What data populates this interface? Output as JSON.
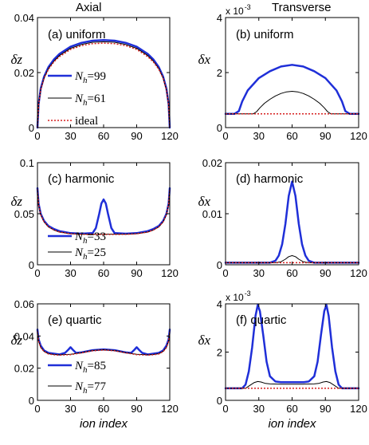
{
  "column_titles": {
    "left": "Axial",
    "right": "Transverse"
  },
  "colors": {
    "blue": "#1f2fd8",
    "black": "#000000",
    "red": "#d62020"
  },
  "chart_data": [
    {
      "id": "a",
      "type": "line",
      "title": "(a) uniform",
      "ylabel": "δz",
      "xlabel": "",
      "xlim": [
        0,
        120
      ],
      "ylim": [
        0,
        0.04
      ],
      "xticks": [
        "0",
        "30",
        "60",
        "90",
        "120"
      ],
      "yticks": [
        "0",
        "0.02",
        "0.04"
      ],
      "x": [
        0,
        1,
        3,
        6,
        10,
        15,
        20,
        30,
        40,
        50,
        60,
        70,
        80,
        90,
        100,
        105,
        110,
        114,
        117,
        119,
        120
      ],
      "legend": {
        "placement": "lower-center"
      },
      "series": [
        {
          "name": "N_h=99",
          "name_base": "N",
          "name_sub": "h",
          "name_rest": "=99",
          "color": "#1f2fd8",
          "style": "solid",
          "width": 2.5,
          "values": [
            0.0,
            0.0085,
            0.0142,
            0.0185,
            0.022,
            0.0248,
            0.0268,
            0.0294,
            0.0308,
            0.0316,
            0.0318,
            0.0316,
            0.0308,
            0.0294,
            0.0268,
            0.0248,
            0.022,
            0.0185,
            0.0142,
            0.0085,
            0.0
          ]
        },
        {
          "name": "N_h=61",
          "name_base": "N",
          "name_sub": "h",
          "name_rest": "=61",
          "color": "#000000",
          "style": "solid",
          "width": 1,
          "values": [
            0.0,
            0.0083,
            0.0139,
            0.0181,
            0.0215,
            0.0242,
            0.0262,
            0.0288,
            0.0302,
            0.031,
            0.0312,
            0.031,
            0.0302,
            0.0288,
            0.0262,
            0.0242,
            0.0215,
            0.0181,
            0.0139,
            0.0083,
            0.0
          ]
        },
        {
          "name": "ideal",
          "color": "#d62020",
          "style": "dotted",
          "width": 1.5,
          "values": [
            0.0,
            0.0082,
            0.0137,
            0.0179,
            0.0212,
            0.0239,
            0.0258,
            0.0284,
            0.0298,
            0.0305,
            0.0307,
            0.0305,
            0.0298,
            0.0284,
            0.0258,
            0.0239,
            0.0212,
            0.0179,
            0.0137,
            0.0082,
            0.0
          ]
        }
      ]
    },
    {
      "id": "b",
      "type": "line",
      "title": "(b) uniform",
      "ylabel": "δx",
      "xlabel": "",
      "multiplier_base": "x 10",
      "multiplier_exp": "-3",
      "xlim": [
        0,
        120
      ],
      "ylim": [
        0,
        4
      ],
      "xticks": [
        "0",
        "30",
        "60",
        "90",
        "120"
      ],
      "yticks": [
        "0",
        "2",
        "4"
      ],
      "series": [
        {
          "color": "#1f2fd8",
          "style": "solid",
          "width": 2.5,
          "x": [
            0,
            8,
            12,
            15,
            20,
            30,
            40,
            50,
            60,
            70,
            80,
            90,
            100,
            105,
            108,
            112,
            120
          ],
          "values": [
            0.5,
            0.5,
            0.6,
            0.95,
            1.35,
            1.8,
            2.05,
            2.22,
            2.28,
            2.22,
            2.05,
            1.8,
            1.35,
            0.95,
            0.6,
            0.5,
            0.5
          ]
        },
        {
          "color": "#000000",
          "style": "solid",
          "width": 1,
          "x": [
            0,
            25,
            28,
            31,
            35,
            40,
            45,
            50,
            55,
            60,
            65,
            70,
            75,
            80,
            85,
            89,
            92,
            95,
            120
          ],
          "values": [
            0.5,
            0.5,
            0.58,
            0.72,
            0.88,
            1.03,
            1.15,
            1.24,
            1.3,
            1.32,
            1.3,
            1.24,
            1.15,
            1.03,
            0.88,
            0.72,
            0.58,
            0.5,
            0.5
          ]
        },
        {
          "color": "#d62020",
          "style": "dotted",
          "width": 1.5,
          "x": [
            0,
            120
          ],
          "values": [
            0.5,
            0.5
          ]
        }
      ]
    },
    {
      "id": "c",
      "type": "line",
      "title": "(c) harmonic",
      "ylabel": "δz",
      "xlabel": "",
      "xlim": [
        0,
        120
      ],
      "ylim": [
        0,
        0.1
      ],
      "xticks": [
        "0",
        "30",
        "60",
        "90",
        "120"
      ],
      "yticks": [
        "0",
        "0.05",
        "0.1"
      ],
      "legend": {
        "placement": "lower-center"
      },
      "series": [
        {
          "name": "N_h=33",
          "name_base": "N",
          "name_sub": "h",
          "name_rest": "=33",
          "color": "#1f2fd8",
          "style": "solid",
          "width": 2.5,
          "x": [
            0,
            1,
            3,
            6,
            10,
            15,
            20,
            30,
            40,
            50,
            53,
            56,
            58,
            60,
            62,
            64,
            67,
            70,
            80,
            90,
            100,
            105,
            110,
            114,
            117,
            119,
            120
          ],
          "values": [
            0.075,
            0.06,
            0.05,
            0.043,
            0.038,
            0.035,
            0.033,
            0.031,
            0.0305,
            0.031,
            0.036,
            0.05,
            0.06,
            0.064,
            0.06,
            0.05,
            0.036,
            0.031,
            0.0305,
            0.031,
            0.033,
            0.035,
            0.038,
            0.043,
            0.05,
            0.06,
            0.075
          ]
        },
        {
          "name": "N_h=25",
          "name_base": "N",
          "name_sub": "h",
          "name_rest": "=25",
          "color": "#000000",
          "style": "solid",
          "width": 1,
          "x": [
            0,
            1,
            3,
            6,
            10,
            15,
            20,
            30,
            40,
            50,
            60,
            70,
            80,
            90,
            100,
            105,
            110,
            114,
            117,
            119,
            120
          ],
          "values": [
            0.074,
            0.059,
            0.049,
            0.042,
            0.037,
            0.034,
            0.032,
            0.0305,
            0.03,
            0.03,
            0.03,
            0.03,
            0.03,
            0.0305,
            0.032,
            0.034,
            0.037,
            0.042,
            0.049,
            0.059,
            0.074
          ]
        },
        {
          "color": "#d62020",
          "style": "dotted",
          "width": 1.5,
          "x": [
            0,
            1,
            3,
            6,
            10,
            15,
            20,
            30,
            40,
            50,
            60,
            70,
            80,
            90,
            100,
            105,
            110,
            114,
            117,
            119,
            120
          ],
          "values": [
            0.074,
            0.059,
            0.049,
            0.042,
            0.037,
            0.034,
            0.032,
            0.0303,
            0.0298,
            0.0297,
            0.0297,
            0.0297,
            0.0298,
            0.0303,
            0.032,
            0.034,
            0.037,
            0.042,
            0.049,
            0.059,
            0.074
          ]
        }
      ]
    },
    {
      "id": "d",
      "type": "line",
      "title": "(d) harmonic",
      "ylabel": "δx",
      "xlabel": "",
      "xlim": [
        0,
        120
      ],
      "ylim": [
        0,
        0.02
      ],
      "xticks": [
        "0",
        "30",
        "60",
        "90",
        "120"
      ],
      "yticks": [
        "0",
        "0.01",
        "0.02"
      ],
      "series": [
        {
          "color": "#1f2fd8",
          "style": "solid",
          "width": 2.5,
          "x": [
            0,
            40,
            45,
            48,
            51,
            54,
            57,
            60,
            63,
            66,
            69,
            72,
            75,
            80,
            120
          ],
          "values": [
            0.0004,
            0.0004,
            0.0008,
            0.0018,
            0.004,
            0.008,
            0.0135,
            0.0163,
            0.0135,
            0.008,
            0.004,
            0.0018,
            0.0008,
            0.0004,
            0.0004
          ]
        },
        {
          "color": "#000000",
          "style": "solid",
          "width": 1,
          "x": [
            0,
            45,
            50,
            54,
            57,
            60,
            63,
            66,
            70,
            75,
            120
          ],
          "values": [
            0.0004,
            0.0004,
            0.0006,
            0.0011,
            0.0016,
            0.0018,
            0.0016,
            0.0011,
            0.0006,
            0.0004,
            0.0004
          ]
        },
        {
          "color": "#d62020",
          "style": "dotted",
          "width": 1.5,
          "x": [
            0,
            120
          ],
          "values": [
            0.0004,
            0.0004
          ]
        }
      ]
    },
    {
      "id": "e",
      "type": "line",
      "title": "(e) quartic",
      "ylabel": "δz",
      "xlabel": "ion index",
      "xlim": [
        0,
        120
      ],
      "ylim": [
        0,
        0.06
      ],
      "xticks": [
        "0",
        "30",
        "60",
        "90",
        "120"
      ],
      "yticks": [
        "0",
        "0.02",
        "0.04",
        "0.06"
      ],
      "legend": {
        "placement": "lower-center"
      },
      "series": [
        {
          "name": "N_h=85",
          "name_base": "N",
          "name_sub": "h",
          "name_rest": "=85",
          "color": "#1f2fd8",
          "style": "solid",
          "width": 2.5,
          "x": [
            0,
            1,
            3,
            6,
            10,
            15,
            20,
            25,
            28,
            30,
            32,
            35,
            40,
            50,
            60,
            70,
            80,
            85,
            88,
            90,
            92,
            95,
            100,
            105,
            110,
            114,
            117,
            119,
            120
          ],
          "values": [
            0.044,
            0.038,
            0.034,
            0.031,
            0.0295,
            0.029,
            0.0285,
            0.0295,
            0.0315,
            0.033,
            0.0315,
            0.0295,
            0.0298,
            0.0312,
            0.0317,
            0.0312,
            0.0298,
            0.0295,
            0.0315,
            0.033,
            0.0315,
            0.0295,
            0.0285,
            0.029,
            0.0295,
            0.031,
            0.034,
            0.038,
            0.044
          ]
        },
        {
          "name": "N_h=77",
          "name_base": "N",
          "name_sub": "h",
          "name_rest": "=77",
          "color": "#000000",
          "style": "solid",
          "width": 1,
          "x": [
            0,
            1,
            3,
            6,
            10,
            15,
            20,
            30,
            40,
            50,
            60,
            70,
            80,
            90,
            100,
            105,
            110,
            114,
            117,
            119,
            120
          ],
          "values": [
            0.043,
            0.037,
            0.033,
            0.0305,
            0.029,
            0.0285,
            0.0283,
            0.0286,
            0.0297,
            0.031,
            0.0315,
            0.031,
            0.0297,
            0.0286,
            0.0283,
            0.0285,
            0.029,
            0.0305,
            0.033,
            0.037,
            0.043
          ]
        },
        {
          "color": "#d62020",
          "style": "dotted",
          "width": 1.5,
          "x": [
            0,
            1,
            3,
            6,
            10,
            15,
            20,
            30,
            40,
            50,
            60,
            70,
            80,
            90,
            100,
            105,
            110,
            114,
            117,
            119,
            120
          ],
          "values": [
            0.0428,
            0.0368,
            0.0328,
            0.0303,
            0.0288,
            0.0283,
            0.0281,
            0.0284,
            0.0295,
            0.0308,
            0.0313,
            0.0308,
            0.0295,
            0.0284,
            0.0281,
            0.0283,
            0.0288,
            0.0303,
            0.0328,
            0.0368,
            0.0428
          ]
        }
      ]
    },
    {
      "id": "f",
      "type": "line",
      "title": "(f)  quartic",
      "ylabel": "δx",
      "xlabel": "ion index",
      "multiplier_base": "x 10",
      "multiplier_exp": "-3",
      "xlim": [
        0,
        120
      ],
      "ylim": [
        0,
        4
      ],
      "xticks": [
        "0",
        "30",
        "60",
        "90",
        "120"
      ],
      "yticks": [
        "0",
        "2",
        "4"
      ],
      "series": [
        {
          "color": "#1f2fd8",
          "style": "solid",
          "width": 2.5,
          "x": [
            0,
            15,
            18,
            21,
            24,
            27,
            29,
            31,
            34,
            37,
            40,
            45,
            50,
            60,
            70,
            75,
            80,
            83,
            86,
            89,
            91,
            93,
            96,
            99,
            102,
            105,
            120
          ],
          "values": [
            0.5,
            0.5,
            0.65,
            1.2,
            2.2,
            3.5,
            3.95,
            3.7,
            2.7,
            1.6,
            1.0,
            0.78,
            0.75,
            0.75,
            0.75,
            0.78,
            1.0,
            1.6,
            2.7,
            3.7,
            3.95,
            3.5,
            2.2,
            1.2,
            0.65,
            0.5,
            0.5
          ]
        },
        {
          "color": "#000000",
          "style": "solid",
          "width": 1,
          "x": [
            0,
            18,
            22,
            26,
            29,
            32,
            36,
            40,
            50,
            60,
            70,
            80,
            84,
            88,
            91,
            94,
            98,
            102,
            120
          ],
          "values": [
            0.5,
            0.5,
            0.62,
            0.74,
            0.78,
            0.76,
            0.7,
            0.68,
            0.67,
            0.67,
            0.67,
            0.68,
            0.7,
            0.76,
            0.78,
            0.74,
            0.62,
            0.5,
            0.5
          ]
        },
        {
          "color": "#d62020",
          "style": "dotted",
          "width": 1.5,
          "x": [
            0,
            120
          ],
          "values": [
            0.5,
            0.5
          ]
        }
      ]
    }
  ]
}
